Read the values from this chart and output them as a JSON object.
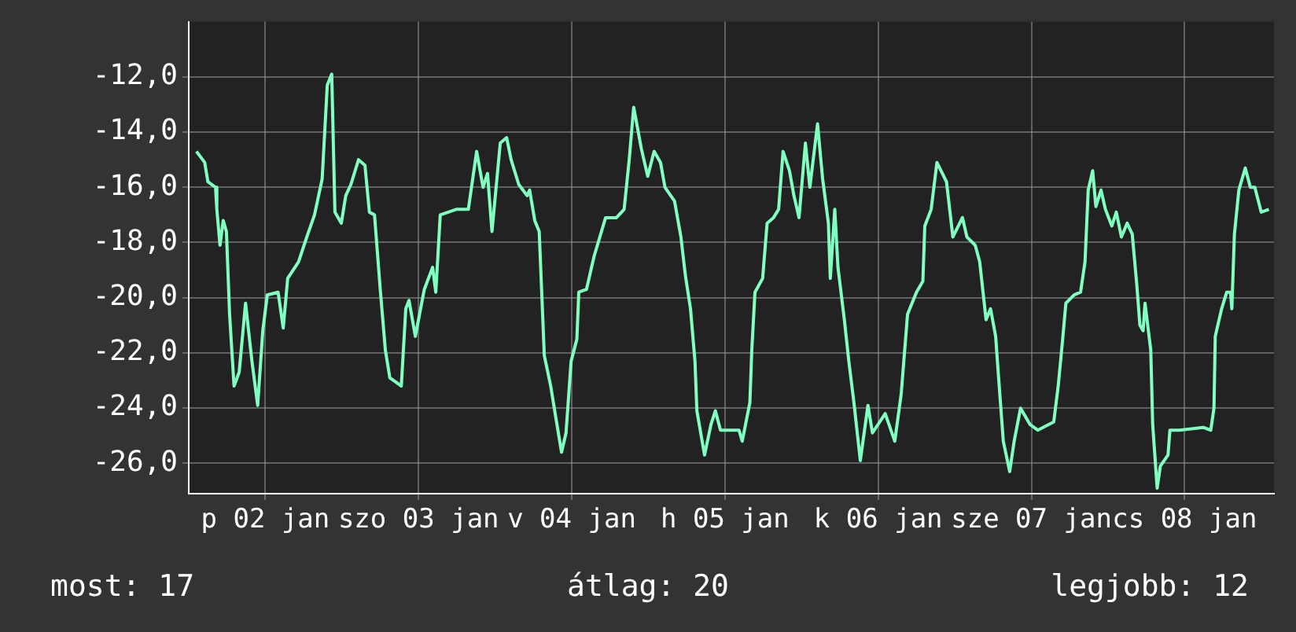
{
  "chart_data": {
    "type": "line",
    "color": "#80ffc0",
    "marker": "none",
    "line_style": "solid",
    "grid": true,
    "legend": false,
    "x": [
      "--01-02T01:12",
      "--01-02T02:30",
      "--01-02T03:00",
      "--01-02T04:12",
      "--01-02T04:24",
      "--01-02T04:54",
      "--01-02T05:24",
      "--01-02T05:54",
      "--01-02T06:24",
      "--01-02T07:06",
      "--01-02T07:54",
      "--01-02T08:54",
      "--01-02T09:54",
      "--01-02T10:48",
      "--01-02T11:36",
      "--01-02T12:18",
      "--01-02T14:00",
      "--01-02T14:48",
      "--01-02T15:30",
      "--01-02T17:12",
      "--01-02T18:30",
      "--01-02T19:42",
      "--01-02T20:54",
      "--01-02T21:42",
      "--01-02T22:24",
      "--01-02T22:54",
      "--01-02T23:54",
      "--01-03T00:36",
      "--01-03T01:24",
      "--01-03T02:36",
      "--01-03T03:36",
      "--01-03T04:18",
      "--01-03T05:06",
      "--01-03T06:00",
      "--01-03T06:48",
      "--01-03T07:30",
      "--01-03T09:18",
      "--01-03T10:00",
      "--01-03T10:30",
      "--01-03T11:30",
      "--01-03T12:54",
      "--01-03T14:12",
      "--01-03T14:42",
      "--01-03T15:24",
      "--01-03T17:54",
      "--01-03T19:48",
      "--01-03T21:06",
      "--01-03T22:06",
      "--01-03T22:48",
      "--01-03T23:30",
      "--01-04T00:48",
      "--01-04T01:48",
      "--01-04T02:30",
      "--01-04T03:42",
      "--01-04T05:00",
      "--01-04T05:24",
      "--01-04T06:12",
      "--01-04T06:54",
      "--01-04T07:42",
      "--01-04T08:42",
      "--01-04T09:24",
      "--01-04T10:24",
      "--01-04T11:06",
      "--01-04T11:54",
      "--01-04T12:48",
      "--01-04T13:06",
      "--01-04T14:18",
      "--01-04T15:30",
      "--01-04T17:18",
      "--01-04T19:00",
      "--01-04T20:12",
      "--01-04T21:00",
      "--01-04T21:42",
      "--01-04T22:54",
      "--01-04T23:54",
      "--01-05T00:54",
      "--01-05T01:54",
      "--01-05T02:36",
      "--01-05T04:06",
      "--01-05T05:06",
      "--01-05T05:48",
      "--01-05T06:36",
      "--01-05T07:18",
      "--01-05T07:36",
      "--01-05T08:48",
      "--01-05T09:48",
      "--01-05T10:30",
      "--01-05T11:18",
      "--01-05T14:12",
      "--01-05T14:42",
      "--01-05T15:54",
      "--01-05T16:12",
      "--01-05T16:42",
      "--01-05T17:54",
      "--01-05T18:36",
      "--01-05T19:36",
      "--01-05T20:24",
      "--01-05T21:06",
      "--01-05T22:06",
      "--01-05T22:48",
      "--01-05T23:36",
      "--01-06T00:36",
      "--01-06T01:18",
      "--01-06T02:30",
      "--01-06T03:18",
      "--01-06T04:12",
      "--01-06T04:30",
      "--01-06T05:12",
      "--01-06T05:42",
      "--01-06T06:42",
      "--01-06T07:24",
      "--01-06T08:12",
      "--01-06T09:12",
      "--01-06T10:24",
      "--01-06T11:06",
      "--01-06T13:06",
      "--01-06T14:36",
      "--01-06T15:36",
      "--01-06T16:36",
      "--01-06T18:00",
      "--01-06T19:00",
      "--01-06T19:18",
      "--01-06T20:18",
      "--01-06T21:12",
      "--01-06T22:42",
      "--01-06T23:42",
      "--01-07T01:12",
      "--01-07T01:54",
      "--01-07T03:12",
      "--01-07T03:54",
      "--01-07T04:54",
      "--01-07T05:36",
      "--01-07T06:24",
      "--01-07T06:48",
      "--01-07T07:36",
      "--01-07T08:36",
      "--01-07T09:18",
      "--01-07T10:18",
      "--01-07T11:48",
      "--01-07T13:00",
      "--01-07T15:30",
      "--01-07T16:12",
      "--01-07T16:54",
      "--01-07T17:24",
      "--01-07T18:42",
      "--01-07T19:42",
      "--01-07T20:24",
      "--01-07T20:54",
      "--01-07T21:36",
      "--01-07T22:06",
      "--01-07T22:54",
      "--01-07T23:36",
      "--01-08T00:36",
      "--01-08T01:18",
      "--01-08T02:06",
      "--01-08T03:00",
      "--01-08T03:48",
      "--01-08T04:30",
      "--01-08T05:00",
      "--01-08T05:30",
      "--01-08T05:48",
      "--01-08T06:42",
      "--01-08T07:00",
      "--01-08T07:42",
      "--01-08T08:12",
      "--01-08T09:24",
      "--01-08T09:42",
      "--01-08T11:12",
      "--01-08T14:54",
      "--01-08T16:06",
      "--01-08T16:36",
      "--01-08T16:48",
      "--01-08T17:48",
      "--01-08T18:36",
      "--01-08T19:12",
      "--01-08T19:24",
      "--01-08T19:48",
      "--01-08T20:30",
      "--01-08T21:30",
      "--01-08T22:18",
      "--01-08T23:00",
      "--01-09T00:00",
      "--01-09T01:12"
    ],
    "values": [
      -14.7,
      -15.1,
      -15.8,
      -16.0,
      -16.8,
      -18.1,
      -17.2,
      -17.6,
      -20.6,
      -23.2,
      -22.7,
      -20.2,
      -22.3,
      -23.9,
      -21.2,
      -19.9,
      -19.8,
      -21.1,
      -19.3,
      -18.7,
      -17.8,
      -17.0,
      -15.7,
      -12.3,
      -11.9,
      -16.9,
      -17.3,
      -16.3,
      -15.9,
      -15.0,
      -15.2,
      -16.9,
      -17.0,
      -19.7,
      -21.9,
      -22.9,
      -23.2,
      -20.4,
      -20.1,
      -21.4,
      -19.7,
      -18.9,
      -19.8,
      -17.0,
      -16.8,
      -16.8,
      -14.7,
      -16.0,
      -15.5,
      -17.6,
      -14.4,
      -14.2,
      -15.0,
      -15.9,
      -16.3,
      -16.1,
      -17.2,
      -17.6,
      -22.1,
      -23.2,
      -24.2,
      -25.6,
      -24.9,
      -22.3,
      -21.5,
      -19.8,
      -19.7,
      -18.5,
      -17.1,
      -17.1,
      -16.8,
      -15.0,
      -13.1,
      -14.6,
      -15.6,
      -14.7,
      -15.1,
      -16.0,
      -16.5,
      -17.8,
      -19.2,
      -20.4,
      -22.3,
      -24.1,
      -25.7,
      -24.6,
      -24.1,
      -24.8,
      -24.8,
      -25.2,
      -23.8,
      -21.9,
      -19.8,
      -19.3,
      -17.3,
      -17.1,
      -16.8,
      -14.7,
      -15.4,
      -16.3,
      -17.1,
      -14.4,
      -16.0,
      -13.7,
      -15.7,
      -17.3,
      -19.3,
      -16.8,
      -18.9,
      -20.8,
      -22.3,
      -23.8,
      -25.9,
      -23.9,
      -24.9,
      -24.2,
      -25.2,
      -23.5,
      -20.6,
      -19.8,
      -19.4,
      -17.4,
      -16.8,
      -15.1,
      -15.8,
      -17.8,
      -17.1,
      -17.8,
      -18.1,
      -18.7,
      -20.8,
      -20.4,
      -21.4,
      -22.7,
      -25.2,
      -26.3,
      -25.2,
      -24.0,
      -24.6,
      -24.8,
      -24.5,
      -23.2,
      -21.5,
      -20.2,
      -19.9,
      -19.8,
      -18.7,
      -16.1,
      -15.4,
      -16.7,
      -16.1,
      -16.8,
      -17.4,
      -16.9,
      -17.8,
      -17.3,
      -17.7,
      -19.5,
      -21.0,
      -21.2,
      -20.2,
      -21.9,
      -24.6,
      -26.9,
      -26.1,
      -25.7,
      -24.8,
      -24.8,
      -24.7,
      -24.8,
      -24.0,
      -21.4,
      -20.4,
      -19.8,
      -19.8,
      -20.4,
      -17.7,
      -16.1,
      -15.3,
      -16.0,
      -16.0,
      -16.9,
      -16.8
    ],
    "xlim": [
      "--01-02T00:00",
      "--01-09T02:00"
    ],
    "xticks": [
      {
        "value": "--01-02T12:00",
        "label": "p 02 jan"
      },
      {
        "value": "--01-03T12:00",
        "label": "szo 03 jan"
      },
      {
        "value": "--01-04T12:00",
        "label": "v 04 jan"
      },
      {
        "value": "--01-05T12:00",
        "label": "h 05 jan"
      },
      {
        "value": "--01-06T12:00",
        "label": "k 06 jan"
      },
      {
        "value": "--01-07T12:00",
        "label": "sze 07 jan"
      },
      {
        "value": "--01-08T12:00",
        "label": "cs 08 jan"
      }
    ],
    "ylim": [
      -27.1,
      -10.0
    ],
    "yticks": [
      {
        "value": -26,
        "label": "-26,0"
      },
      {
        "value": -24,
        "label": "-24,0"
      },
      {
        "value": -22,
        "label": "-22,0"
      },
      {
        "value": -20,
        "label": "-20,0"
      },
      {
        "value": -18,
        "label": "-18,0"
      },
      {
        "value": -16,
        "label": "-16,0"
      },
      {
        "value": -14,
        "label": "-14,0"
      },
      {
        "value": -12,
        "label": "-12,0"
      }
    ],
    "annotations": [
      "most: 17",
      "átlag: 20",
      "legjobb: 12"
    ]
  }
}
